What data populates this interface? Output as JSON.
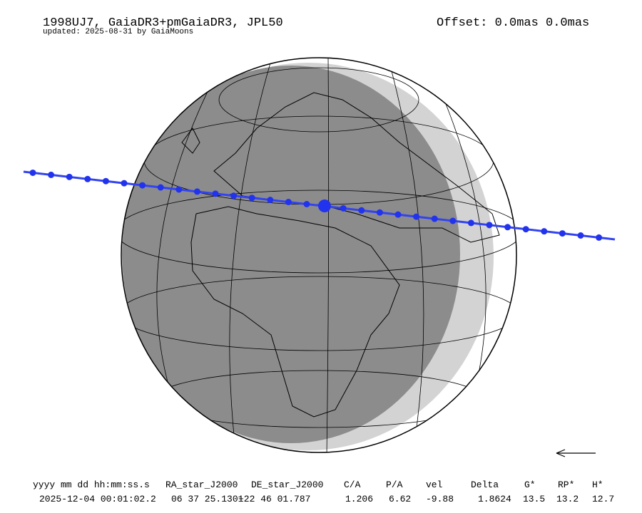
{
  "header": {
    "title": "1998UJ7, GaiaDR3+pmGaiaDR3, JPL50",
    "subtitle": "updated: 2025-08-31 by GaiaMoons",
    "offset": "Offset: 0.0mas 0.0mas"
  },
  "table": {
    "headers": [
      "yyyy mm dd hh:mm:ss.s",
      "RA_star_J2000",
      "DE_star_J2000",
      "C/A",
      "P/A",
      "vel",
      "Delta",
      "G*",
      "RP*",
      "H*"
    ],
    "row": [
      "2025-12-04 00:01:02.2",
      "06 37 25.1301",
      "+22 46 01.787",
      "1.206",
      "6.62",
      "-9.88",
      "1.8624",
      "13.5",
      "13.2",
      "12.7"
    ]
  }
}
